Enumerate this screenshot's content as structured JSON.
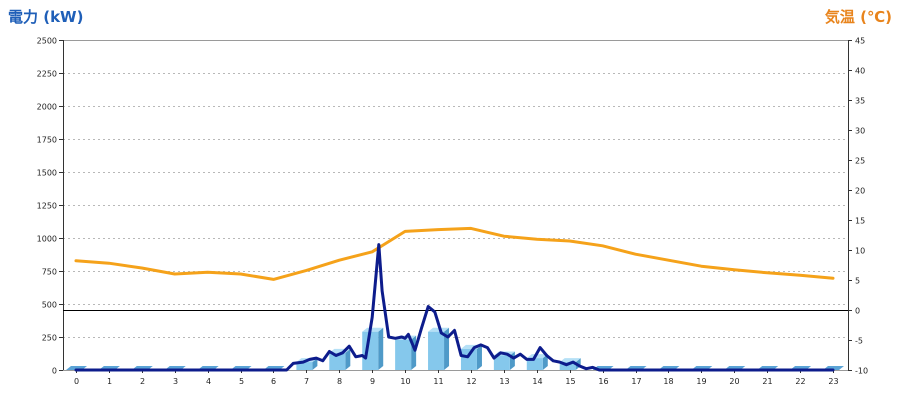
{
  "header": {
    "left_axis_title": "電力 (kW)",
    "right_axis_title": "気温 (℃)"
  },
  "chart_data": {
    "type": "bar",
    "xlim": [
      0,
      23
    ],
    "x_ticks": [
      "0",
      "1",
      "2",
      "3",
      "4",
      "5",
      "6",
      "7",
      "8",
      "9",
      "10",
      "11",
      "12",
      "13",
      "14",
      "15",
      "16",
      "17",
      "18",
      "19",
      "20",
      "21",
      "22",
      "23"
    ],
    "y_left": {
      "label": "電力 (kW)",
      "range": [
        0,
        2500
      ],
      "ticks": [
        "0",
        "250",
        "500",
        "750",
        "1000",
        "1250",
        "1500",
        "1750",
        "2000",
        "2250",
        "2500"
      ]
    },
    "y_right": {
      "label": "気温 (℃)",
      "range": [
        -10,
        45
      ],
      "ticks": [
        "-10",
        "-5",
        "0",
        "5",
        "10",
        "15",
        "20",
        "25",
        "30",
        "35",
        "40",
        "45"
      ]
    },
    "grid": true,
    "colors": {
      "bar_face": "#85c8ec",
      "bar_side": "#4f9ac8",
      "bar_top": "#b5e0f6",
      "base_marker": "#5aa3d6",
      "power_line": "#0d1c8c",
      "temperature_line": "#f5a21a",
      "header_left": "#1f5fb8",
      "header_right": "#e8841c"
    },
    "series": [
      {
        "kind": "bar",
        "axis": "left",
        "x": [
          0,
          1,
          2,
          3,
          4,
          5,
          6,
          7,
          8,
          9,
          10,
          11,
          12,
          13,
          14,
          15,
          16,
          17,
          18,
          19,
          20,
          21,
          22,
          23
        ],
        "values": [
          0,
          0,
          0,
          0,
          0,
          0,
          0,
          60,
          130,
          290,
          230,
          290,
          160,
          110,
          90,
          60,
          0,
          0,
          0,
          0,
          0,
          0,
          0,
          0
        ]
      },
      {
        "kind": "line",
        "axis": "left",
        "points": [
          [
            0,
            0
          ],
          [
            6.4,
            0
          ],
          [
            6.6,
            50
          ],
          [
            6.9,
            60
          ],
          [
            7.1,
            80
          ],
          [
            7.3,
            90
          ],
          [
            7.5,
            70
          ],
          [
            7.7,
            140
          ],
          [
            7.9,
            110
          ],
          [
            8.1,
            130
          ],
          [
            8.3,
            180
          ],
          [
            8.5,
            100
          ],
          [
            8.7,
            110
          ],
          [
            8.8,
            90
          ],
          [
            9.0,
            400
          ],
          [
            9.2,
            950
          ],
          [
            9.3,
            600
          ],
          [
            9.5,
            250
          ],
          [
            9.7,
            240
          ],
          [
            9.9,
            250
          ],
          [
            10.0,
            240
          ],
          [
            10.1,
            270
          ],
          [
            10.3,
            150
          ],
          [
            10.5,
            320
          ],
          [
            10.7,
            480
          ],
          [
            10.9,
            440
          ],
          [
            11.1,
            280
          ],
          [
            11.3,
            250
          ],
          [
            11.5,
            300
          ],
          [
            11.7,
            110
          ],
          [
            11.9,
            100
          ],
          [
            12.1,
            170
          ],
          [
            12.3,
            190
          ],
          [
            12.5,
            170
          ],
          [
            12.7,
            90
          ],
          [
            12.9,
            130
          ],
          [
            13.1,
            120
          ],
          [
            13.3,
            90
          ],
          [
            13.5,
            120
          ],
          [
            13.7,
            80
          ],
          [
            13.9,
            80
          ],
          [
            14.1,
            170
          ],
          [
            14.3,
            110
          ],
          [
            14.5,
            70
          ],
          [
            14.7,
            60
          ],
          [
            14.9,
            40
          ],
          [
            15.1,
            60
          ],
          [
            15.3,
            30
          ],
          [
            15.5,
            10
          ],
          [
            15.7,
            20
          ],
          [
            15.9,
            0
          ],
          [
            23,
            0
          ]
        ]
      },
      {
        "kind": "line",
        "axis": "right",
        "points": [
          [
            0,
            8.2
          ],
          [
            1,
            7.8
          ],
          [
            2,
            7.0
          ],
          [
            3,
            6.0
          ],
          [
            4,
            6.3
          ],
          [
            5,
            6.0
          ],
          [
            6,
            5.1
          ],
          [
            7,
            6.6
          ],
          [
            8,
            8.3
          ],
          [
            9,
            9.7
          ],
          [
            10,
            13.1
          ],
          [
            11,
            13.4
          ],
          [
            12,
            13.6
          ],
          [
            13,
            12.3
          ],
          [
            14,
            11.8
          ],
          [
            15,
            11.5
          ],
          [
            16,
            10.7
          ],
          [
            17,
            9.3
          ],
          [
            18,
            8.3
          ],
          [
            19,
            7.3
          ],
          [
            20,
            6.7
          ],
          [
            21,
            6.2
          ],
          [
            22,
            5.8
          ],
          [
            23,
            5.3
          ]
        ]
      }
    ]
  }
}
